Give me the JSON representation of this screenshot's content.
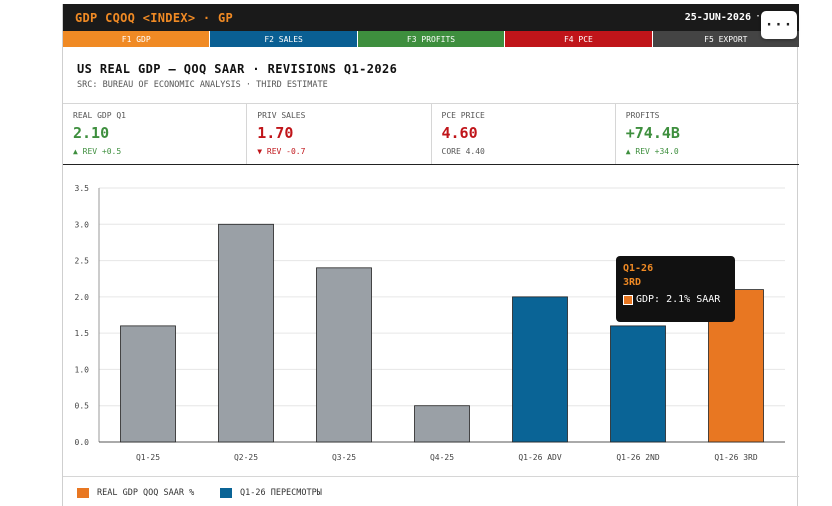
{
  "topbar": {
    "title": "GDP CQOQ <INDEX> · GP",
    "date": "25-JUN-2026",
    "dot": "·",
    "more_label": "···"
  },
  "fkeys": [
    {
      "label": "F1 GDP",
      "color": "#f08a24"
    },
    {
      "label": "F2 SALES",
      "color": "#0a5f93"
    },
    {
      "label": "F3 PROFITS",
      "color": "#3e8f3e"
    },
    {
      "label": "F4 PCE",
      "color": "#c0151a"
    },
    {
      "label": "F5 EXPORT",
      "color": "#444444"
    }
  ],
  "header": {
    "title": "US REAL GDP — QOQ SAAR · REVISIONS Q1-2026",
    "source": "SRC: BUREAU OF ECONOMIC ANALYSIS · THIRD ESTIMATE"
  },
  "stats": [
    {
      "label": "REAL GDP Q1",
      "value": "2.10",
      "value_color": "#3e8f3e",
      "sub": "▲ REV +0.5",
      "sub_color": "#3e8f3e"
    },
    {
      "label": "PRIV SALES",
      "value": "1.70",
      "value_color": "#c0151a",
      "sub": "▼ REV -0.7",
      "sub_color": "#c0151a"
    },
    {
      "label": "PCE PRICE",
      "value": "4.60",
      "value_color": "#c0151a",
      "sub": "CORE 4.40",
      "sub_color": "#555555"
    },
    {
      "label": "PROFITS",
      "value": "+74.4B",
      "value_color": "#3e8f3e",
      "sub": "▲ REV +34.0",
      "sub_color": "#3e8f3e"
    }
  ],
  "chart_data": {
    "type": "bar",
    "categories": [
      "Q1-25",
      "Q2-25",
      "Q3-25",
      "Q4-25",
      "Q1-26 ADV",
      "Q1-26 2ND",
      "Q1-26 3RD"
    ],
    "values": [
      1.6,
      3.0,
      2.4,
      0.5,
      2.0,
      1.6,
      2.1
    ],
    "bar_colors": [
      "#9aa0a6",
      "#9aa0a6",
      "#9aa0a6",
      "#9aa0a6",
      "#0a6496",
      "#0a6496",
      "#e87722"
    ],
    "ylim": [
      0,
      3.5
    ],
    "yticks": [
      "0.0",
      "0.5",
      "1.0",
      "1.5",
      "2.0",
      "2.5",
      "3.0",
      "3.5"
    ],
    "grid": true,
    "legend": [
      {
        "label": "REAL GDP QOQ SAAR %",
        "color": "#e87722"
      },
      {
        "label": "Q1-26 ПЕРЕСМОТРЫ",
        "color": "#0a6496"
      }
    ],
    "legend_placement": "bottom-left"
  },
  "tooltip": {
    "line1": "Q1-26",
    "line2": "3RD",
    "value_text": "GDP: 2.1% SAAR",
    "swatch_color": "#e87722"
  }
}
